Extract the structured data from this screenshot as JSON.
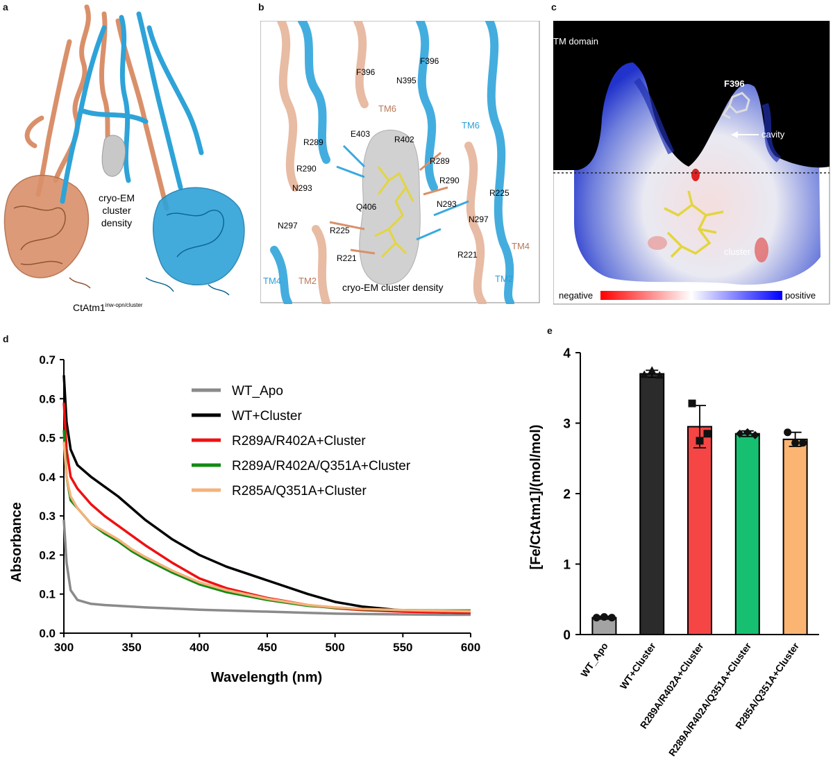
{
  "panel_letters": {
    "a": "a",
    "b": "b",
    "c": "c",
    "d": "d",
    "e": "e"
  },
  "panel_a": {
    "density_label_1": "cryo-EM",
    "density_label_2": "cluster",
    "density_label_3": "density",
    "caption_main": "CtAtm1",
    "caption_sup": "inw-opn/cluster",
    "colors": {
      "chain_a": "#d9906a",
      "chain_b": "#2ea3d8",
      "density": "#c8c8c8"
    }
  },
  "panel_b": {
    "residues": {
      "F396_top": "F396",
      "N395": "N395",
      "F396_left": "F396",
      "TM6_left": "TM6",
      "TM6_right": "TM6",
      "E403": "E403",
      "R402": "R402",
      "R289_left": "R289",
      "R289_right": "R289",
      "R290_left": "R290",
      "R290_right": "R290",
      "R225_right": "R225",
      "N293_left": "N293",
      "N293_right": "N293",
      "Q406": "Q406",
      "N297_left": "N297",
      "N297_right": "N297",
      "R225_left": "R225",
      "R221_left": "R221",
      "R221_right": "R221",
      "TM4_left": "TM4",
      "TM4_right": "TM4",
      "TM2_left": "TM2",
      "TM2_right": "TM2"
    },
    "caption": "cryo-EM cluster density",
    "colors": {
      "tan_label": "#b7785a",
      "blue_label": "#2b9fd6",
      "stick": "#e3d53f"
    }
  },
  "panel_c": {
    "tm_domain": "TM domain",
    "f396": "F396",
    "cavity": "cavity",
    "cluster": "cluster",
    "scale_negative": "negative",
    "scale_positive": "positive",
    "colors": {
      "negative": "#ff0000",
      "neutral": "#ffffff",
      "positive": "#0000ff"
    }
  },
  "panel_d": {
    "chart_data": {
      "type": "line",
      "xlabel": "Wavelength (nm)",
      "ylabel": "Absorbance",
      "xlim": [
        300,
        600
      ],
      "ylim": [
        0.0,
        0.7
      ],
      "x_ticks": [
        "300",
        "350",
        "400",
        "450",
        "500",
        "550",
        "600"
      ],
      "y_ticks": [
        "0.0",
        "0.1",
        "0.2",
        "0.3",
        "0.4",
        "0.5",
        "0.6",
        "0.7"
      ],
      "legend_position": "top-right",
      "x": [
        300,
        302,
        305,
        310,
        320,
        330,
        340,
        350,
        360,
        380,
        400,
        420,
        450,
        480,
        500,
        520,
        550,
        580,
        600
      ],
      "series": [
        {
          "name": "WT_Apo",
          "color": "#8a8a8a",
          "values": [
            0.29,
            0.18,
            0.11,
            0.085,
            0.075,
            0.072,
            0.07,
            0.068,
            0.066,
            0.063,
            0.06,
            0.058,
            0.055,
            0.052,
            0.05,
            0.049,
            0.048,
            0.047,
            0.047
          ]
        },
        {
          "name": "WT+Cluster",
          "color": "#000000",
          "values": [
            0.66,
            0.54,
            0.47,
            0.43,
            0.4,
            0.375,
            0.35,
            0.32,
            0.29,
            0.24,
            0.2,
            0.17,
            0.135,
            0.1,
            0.08,
            0.068,
            0.058,
            0.053,
            0.052
          ]
        },
        {
          "name": "R289A/R402A+Cluster",
          "color": "#ee1111",
          "values": [
            0.59,
            0.47,
            0.4,
            0.37,
            0.33,
            0.3,
            0.275,
            0.25,
            0.225,
            0.18,
            0.14,
            0.115,
            0.09,
            0.072,
            0.064,
            0.059,
            0.055,
            0.053,
            0.052
          ]
        },
        {
          "name": "R289A/R402A/Q351A+Cluster",
          "color": "#138a13",
          "values": [
            0.52,
            0.4,
            0.34,
            0.32,
            0.28,
            0.255,
            0.235,
            0.21,
            0.19,
            0.155,
            0.125,
            0.105,
            0.085,
            0.07,
            0.065,
            0.061,
            0.059,
            0.058,
            0.058
          ]
        },
        {
          "name": "R285A/Q351A+Cluster",
          "color": "#f5b27a",
          "values": [
            0.49,
            0.4,
            0.35,
            0.32,
            0.28,
            0.26,
            0.24,
            0.215,
            0.195,
            0.16,
            0.13,
            0.11,
            0.088,
            0.072,
            0.066,
            0.062,
            0.059,
            0.057,
            0.056
          ]
        }
      ]
    }
  },
  "panel_e": {
    "chart_data": {
      "type": "bar",
      "ylabel": "[Fe/CtAtm1]/(mol/mol)",
      "ylim": [
        0,
        4
      ],
      "y_ticks": [
        "0",
        "1",
        "2",
        "3",
        "4"
      ],
      "categories": [
        "WT_Apo",
        "WT+Cluster",
        "R289A/R402A+Cluster",
        "R289A/R402A/Q351A+Cluster",
        "R285A/Q351A+Cluster"
      ],
      "values": [
        0.24,
        3.7,
        2.95,
        2.85,
        2.77
      ],
      "errors": [
        0.02,
        0.05,
        0.3,
        0.04,
        0.1
      ],
      "colors": [
        "#a3a3a3",
        "#2b2b2b",
        "#f54545",
        "#16c070",
        "#fbb472"
      ],
      "points": [
        [
          0.24,
          0.25,
          0.24
        ],
        [
          3.69,
          3.75,
          3.68
        ],
        [
          3.28,
          2.75,
          2.85
        ],
        [
          2.85,
          2.87,
          2.83
        ],
        [
          2.87,
          2.72,
          2.72
        ]
      ],
      "marker_shapes": [
        "circle",
        "triangle",
        "square",
        "diamond",
        "circle"
      ]
    }
  }
}
